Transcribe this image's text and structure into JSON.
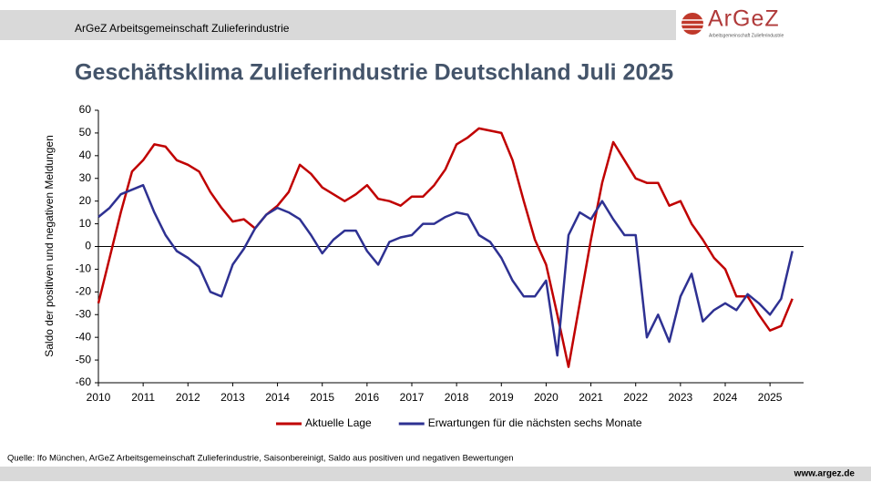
{
  "header": {
    "title": "ArGeZ Arbeitsgemeinschaft Zulieferindustrie"
  },
  "logo": {
    "name": "ArGeZ",
    "tagline": "Arbeitsgemeinschaft Zulieferindustrie"
  },
  "chart_data": {
    "type": "line",
    "title": "Geschäftsklima Zulieferindustrie Deutschland Juli 2025",
    "y_label": "Saldo der positiven und negativen Meldungen",
    "x": [
      2010,
      2010.25,
      2010.5,
      2010.75,
      2011,
      2011.25,
      2011.5,
      2011.75,
      2012,
      2012.25,
      2012.5,
      2012.75,
      2013,
      2013.25,
      2013.5,
      2013.75,
      2014,
      2014.25,
      2014.5,
      2014.75,
      2015,
      2015.25,
      2015.5,
      2015.75,
      2016,
      2016.25,
      2016.5,
      2016.75,
      2017,
      2017.25,
      2017.5,
      2017.75,
      2018,
      2018.25,
      2018.5,
      2018.75,
      2019,
      2019.25,
      2019.5,
      2019.75,
      2020,
      2020.25,
      2020.5,
      2020.75,
      2021,
      2021.25,
      2021.5,
      2021.75,
      2022,
      2022.25,
      2022.5,
      2022.75,
      2023,
      2023.25,
      2023.5,
      2023.75,
      2024,
      2024.25,
      2024.5,
      2024.75,
      2025,
      2025.25,
      2025.5
    ],
    "series": [
      {
        "name": "Aktuelle Lage",
        "color": "#c00000",
        "values": [
          -25,
          -5,
          15,
          33,
          38,
          45,
          44,
          38,
          36,
          33,
          24,
          17,
          11,
          12,
          8,
          14,
          18,
          24,
          36,
          32,
          26,
          23,
          20,
          23,
          27,
          21,
          20,
          18,
          22,
          22,
          27,
          34,
          45,
          48,
          52,
          51,
          50,
          38,
          20,
          3,
          -8,
          -30,
          -53,
          -25,
          3,
          28,
          46,
          38,
          30,
          28,
          28,
          18,
          20,
          10,
          3,
          -5,
          -10,
          -22,
          -22,
          -30,
          -37,
          -35,
          -23
        ]
      },
      {
        "name": "Erwartungen für die nächsten sechs Monate",
        "color": "#2e3192",
        "values": [
          13,
          17,
          23,
          25,
          27,
          15,
          5,
          -2,
          -5,
          -9,
          -20,
          -22,
          -8,
          -1,
          8,
          14,
          17,
          15,
          12,
          5,
          -3,
          3,
          7,
          7,
          -2,
          -8,
          2,
          4,
          5,
          10,
          10,
          13,
          15,
          14,
          5,
          2,
          -5,
          -15,
          -22,
          -22,
          -15,
          -48,
          5,
          15,
          12,
          20,
          12,
          5,
          5,
          -40,
          -30,
          -42,
          -22,
          -12,
          -33,
          -28,
          -25,
          -28,
          -21,
          -25,
          -30,
          -23,
          -2
        ]
      }
    ],
    "xlim": [
      2010,
      2025.75
    ],
    "xticks": [
      2010,
      2011,
      2012,
      2013,
      2014,
      2015,
      2016,
      2017,
      2018,
      2019,
      2020,
      2021,
      2022,
      2023,
      2024,
      2025
    ],
    "ylim": [
      -60,
      60
    ],
    "yticks": [
      -60,
      -50,
      -40,
      -30,
      -20,
      -10,
      0,
      10,
      20,
      30,
      40,
      50,
      60
    ],
    "legend": "bottom"
  },
  "footer": {
    "source": "Quelle: Ifo München, ArGeZ Arbeitsgemeinschaft Zulieferindustrie, Saisonbereinigt, Saldo aus positiven und negativen Bewertungen",
    "url": "www.argez.de"
  }
}
